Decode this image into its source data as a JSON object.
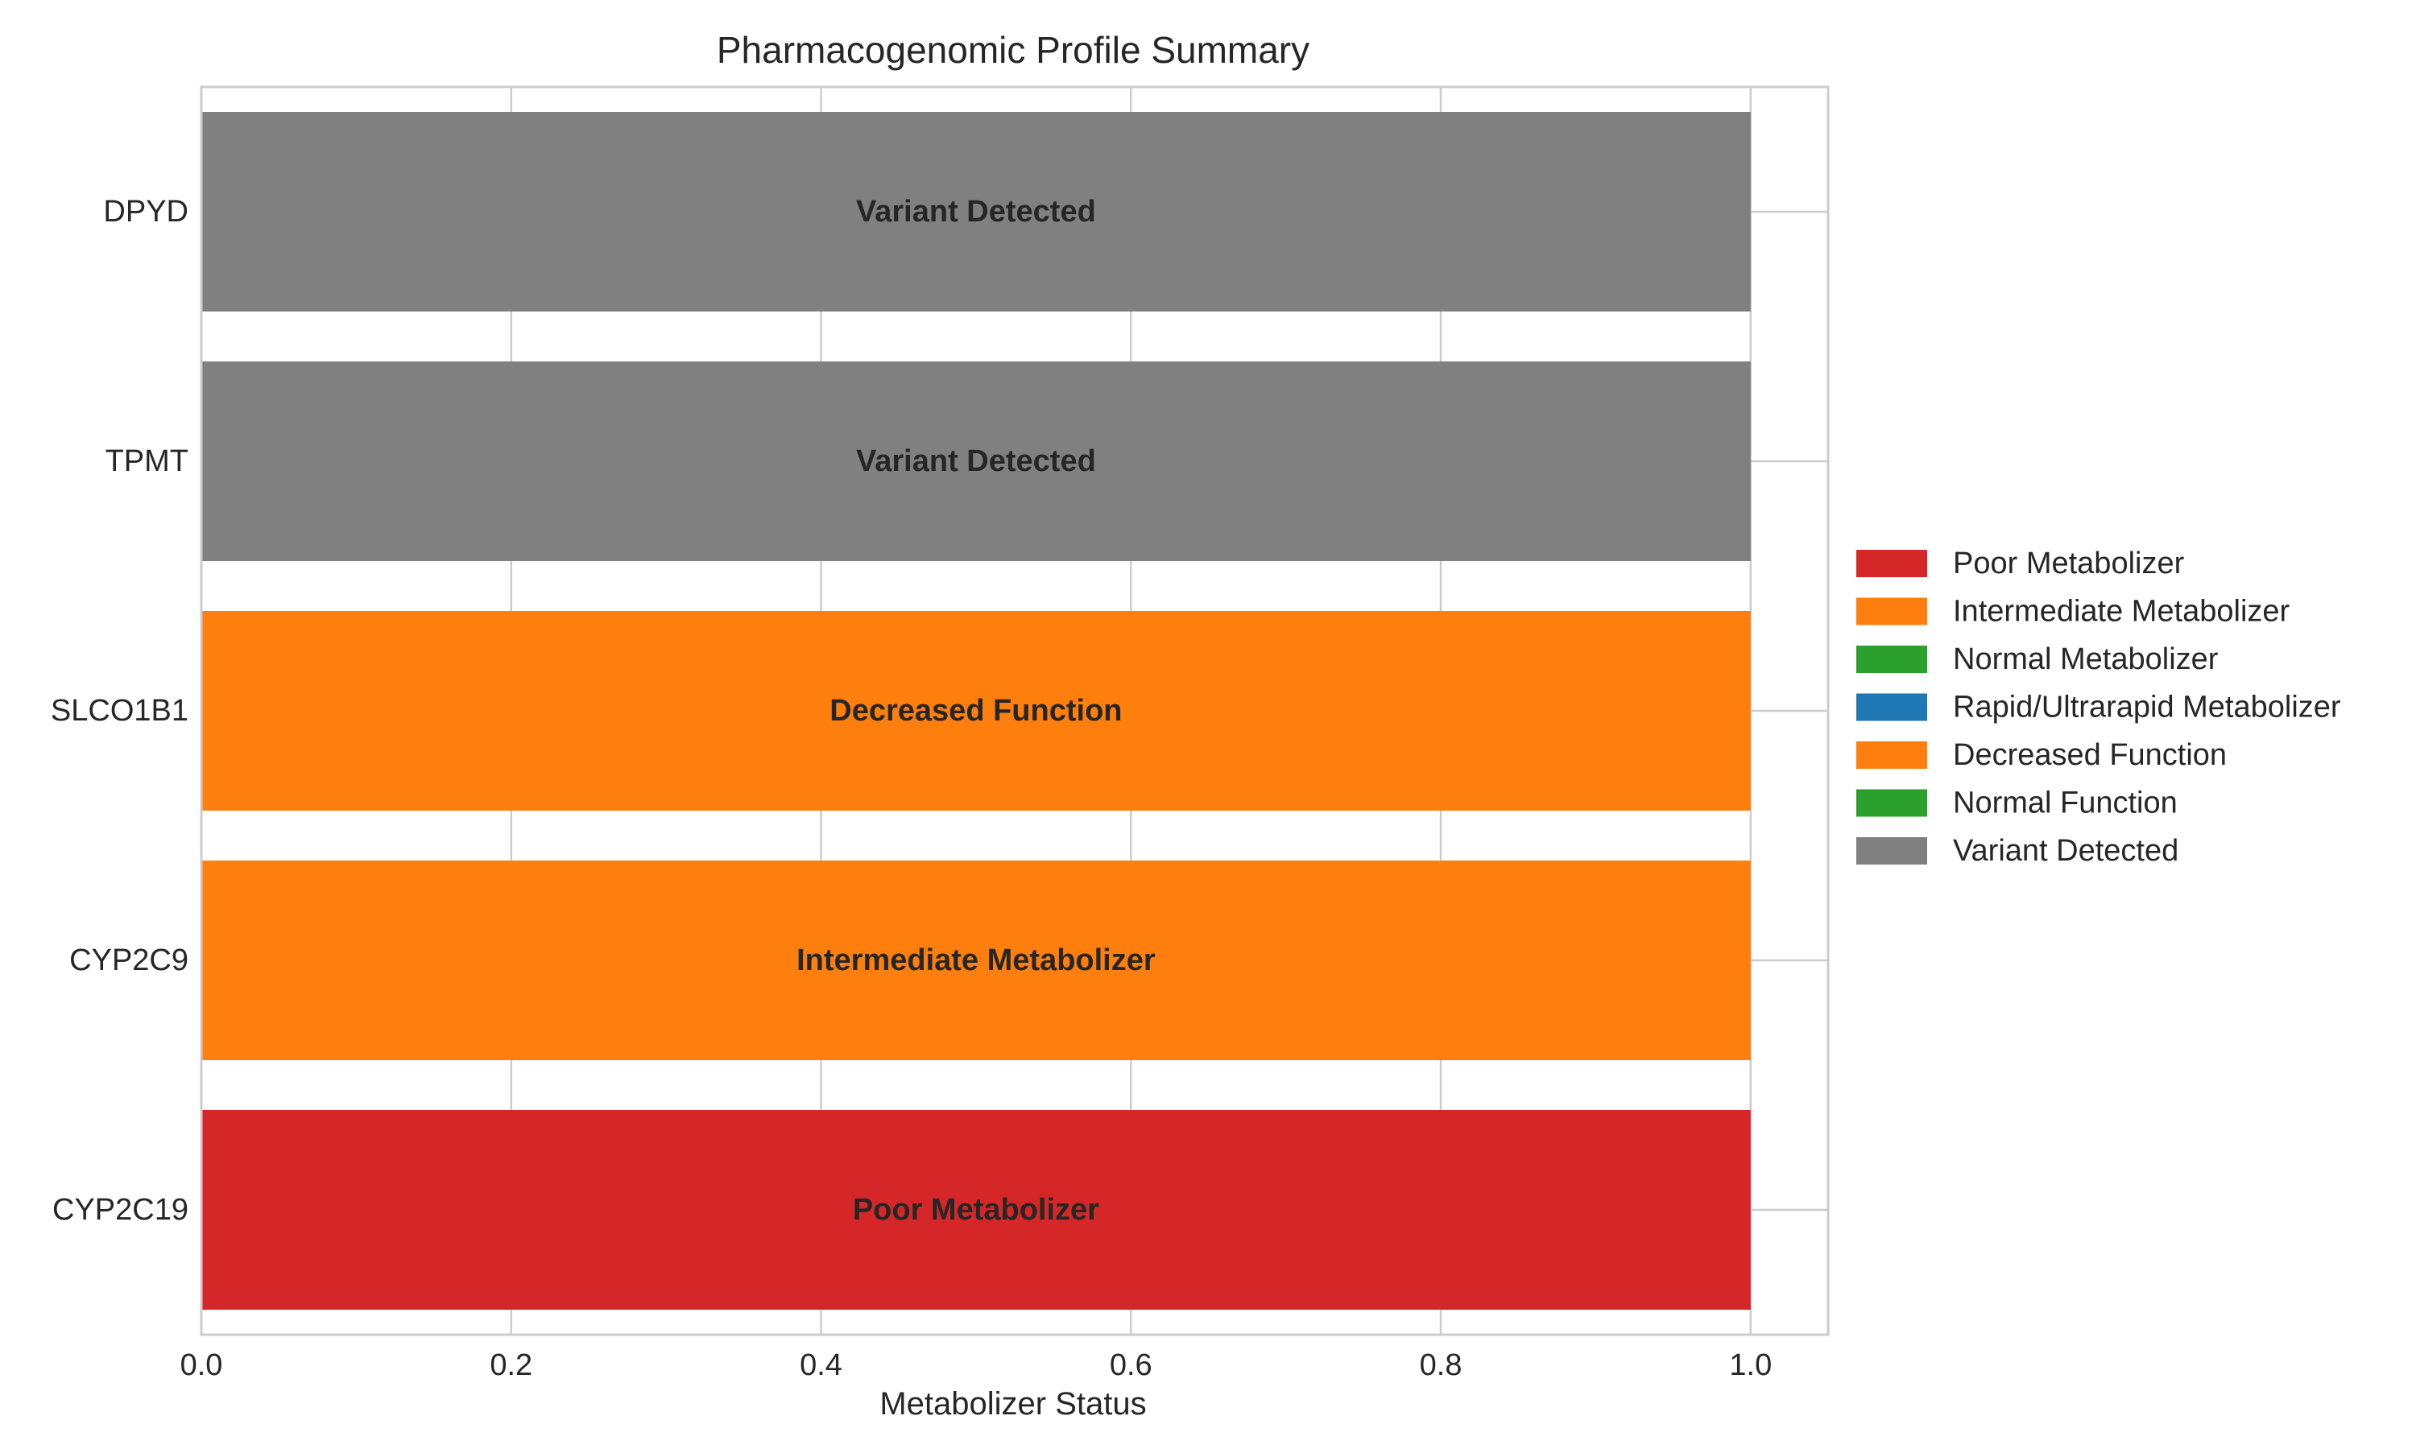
{
  "chart_data": {
    "type": "bar",
    "orientation": "horizontal",
    "title": "Pharmacogenomic Profile Summary",
    "xlabel": "Metabolizer Status",
    "ylabel": "",
    "xlim": [
      0,
      1.05
    ],
    "xticks": [
      "0.0",
      "0.2",
      "0.4",
      "0.6",
      "0.8",
      "1.0"
    ],
    "xtick_values": [
      0,
      0.2,
      0.4,
      0.6,
      0.8,
      1.0
    ],
    "grid": true,
    "legend_position": "right",
    "categories": [
      "DPYD",
      "TPMT",
      "SLCO1B1",
      "CYP2C9",
      "CYP2C19"
    ],
    "values": [
      1.0,
      1.0,
      1.0,
      1.0,
      1.0
    ],
    "bar_labels": [
      "Variant Detected",
      "Variant Detected",
      "Decreased Function",
      "Intermediate Metabolizer",
      "Poor Metabolizer"
    ],
    "bar_colors": [
      "#808080",
      "#808080",
      "#ff7f0e",
      "#ff7f0e",
      "#d62728"
    ],
    "legend": [
      {
        "label": "Poor Metabolizer",
        "color": "#d62728"
      },
      {
        "label": "Intermediate Metabolizer",
        "color": "#ff7f0e"
      },
      {
        "label": "Normal Metabolizer",
        "color": "#2ca02c"
      },
      {
        "label": "Rapid/Ultrarapid Metabolizer",
        "color": "#1f77b4"
      },
      {
        "label": "Decreased Function",
        "color": "#ff7f0e"
      },
      {
        "label": "Normal Function",
        "color": "#2ca02c"
      },
      {
        "label": "Variant Detected",
        "color": "#808080"
      }
    ]
  }
}
